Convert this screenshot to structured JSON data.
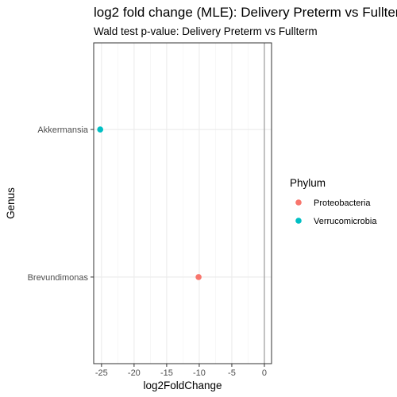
{
  "chart_data": {
    "type": "scatter",
    "title": "log2 fold change (MLE): Delivery Preterm vs Fullterm",
    "subtitle": "Wald test p-value: Delivery Preterm vs Fullterm",
    "xlabel": "log2FoldChange",
    "ylabel": "Genus",
    "xlim": [
      -26.2,
      1.1
    ],
    "x_ticks": [
      -25,
      -20,
      -15,
      -10,
      -5,
      0
    ],
    "categories": [
      "Akkermansia",
      "Brevundimonas"
    ],
    "grid": true,
    "legend": {
      "title": "Phylum",
      "placement": "right",
      "entries": [
        {
          "name": "Proteobacteria",
          "color": "#F8766D"
        },
        {
          "name": "Verrucomicrobia",
          "color": "#00BFC4"
        }
      ]
    },
    "points": [
      {
        "category": "Akkermansia",
        "x": -25.2,
        "phylum": "Verrucomicrobia",
        "color": "#00BFC4"
      },
      {
        "category": "Brevundimonas",
        "x": -10.1,
        "phylum": "Proteobacteria",
        "color": "#F8766D"
      }
    ]
  }
}
